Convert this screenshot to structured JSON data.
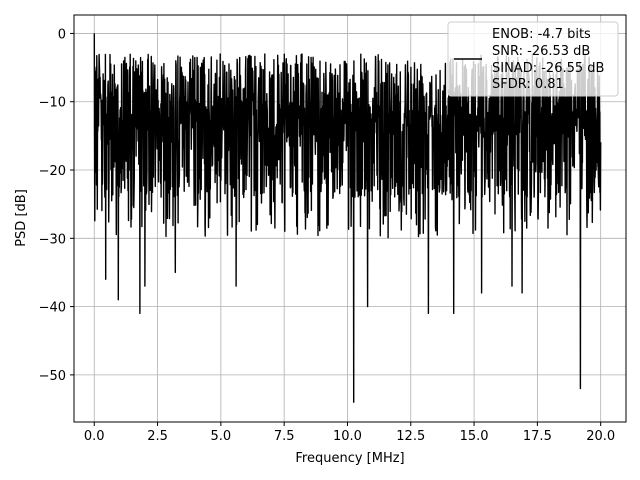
{
  "chart_data": {
    "type": "line",
    "xlabel": "Frequency [MHz]",
    "ylabel": "PSD [dB]",
    "xlim": [
      -0.8,
      21.0
    ],
    "ylim": [
      -56.9,
      2.7
    ],
    "xticks": [
      0.0,
      2.5,
      5.0,
      7.5,
      10.0,
      12.5,
      15.0,
      17.5,
      20.0
    ],
    "xtick_labels": [
      "0.0",
      "2.5",
      "5.0",
      "7.5",
      "10.0",
      "12.5",
      "15.0",
      "17.5",
      "20.0"
    ],
    "yticks": [
      0,
      -10,
      -20,
      -30,
      -40,
      -50
    ],
    "ytick_labels": [
      "0",
      "−10",
      "−20",
      "−30",
      "−40",
      "−50"
    ],
    "grid": true,
    "legend_position": "top-right",
    "legend_lines": [
      "ENOB: -4.7 bits",
      "SNR: -26.53 dB",
      "SINAD: -26.55 dB",
      "SFDR: 0.81"
    ],
    "series": [
      {
        "color": "#000000",
        "note_x_range": [
          0,
          20
        ],
        "dips": [
          [
            0.0,
            -29.0
          ],
          [
            0.45,
            -36.0
          ],
          [
            0.95,
            -39.0
          ],
          [
            1.8,
            -41.0
          ],
          [
            2.0,
            -37.0
          ],
          [
            3.2,
            -35.0
          ],
          [
            5.6,
            -37.0
          ],
          [
            10.25,
            -54.0
          ],
          [
            10.8,
            -40.0
          ],
          [
            13.2,
            -41.0
          ],
          [
            14.2,
            -41.0
          ],
          [
            15.3,
            -38.0
          ],
          [
            16.5,
            -37.0
          ],
          [
            16.9,
            -38.0
          ],
          [
            19.2,
            -52.0
          ]
        ],
        "peak": [
          0.0,
          0.0
        ],
        "values_note": "dense noise trace, typical band -5 to -25 dB"
      }
    ]
  }
}
